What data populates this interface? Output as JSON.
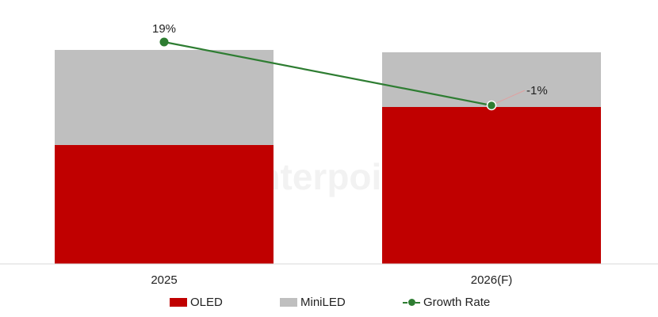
{
  "chart_data": {
    "type": "bar",
    "stacked": true,
    "categories": [
      "2025",
      "2026(F)"
    ],
    "series": [
      {
        "name": "OLED",
        "kind": "bar",
        "color": "#c00000",
        "values": [
          50,
          66
        ]
      },
      {
        "name": "MiniLED",
        "kind": "bar",
        "color": "#bfbfbf",
        "values": [
          40,
          23
        ]
      },
      {
        "name": "Growth Rate",
        "kind": "line",
        "color": "#2e7d32",
        "values": [
          19,
          -1
        ],
        "labels": [
          "19%",
          "-1%"
        ]
      }
    ],
    "ylim": [
      0,
      100
    ],
    "growth_ylim": [
      -15,
      22
    ],
    "legend_position": "bottom",
    "grid": false
  },
  "watermark": "Counterpoint"
}
